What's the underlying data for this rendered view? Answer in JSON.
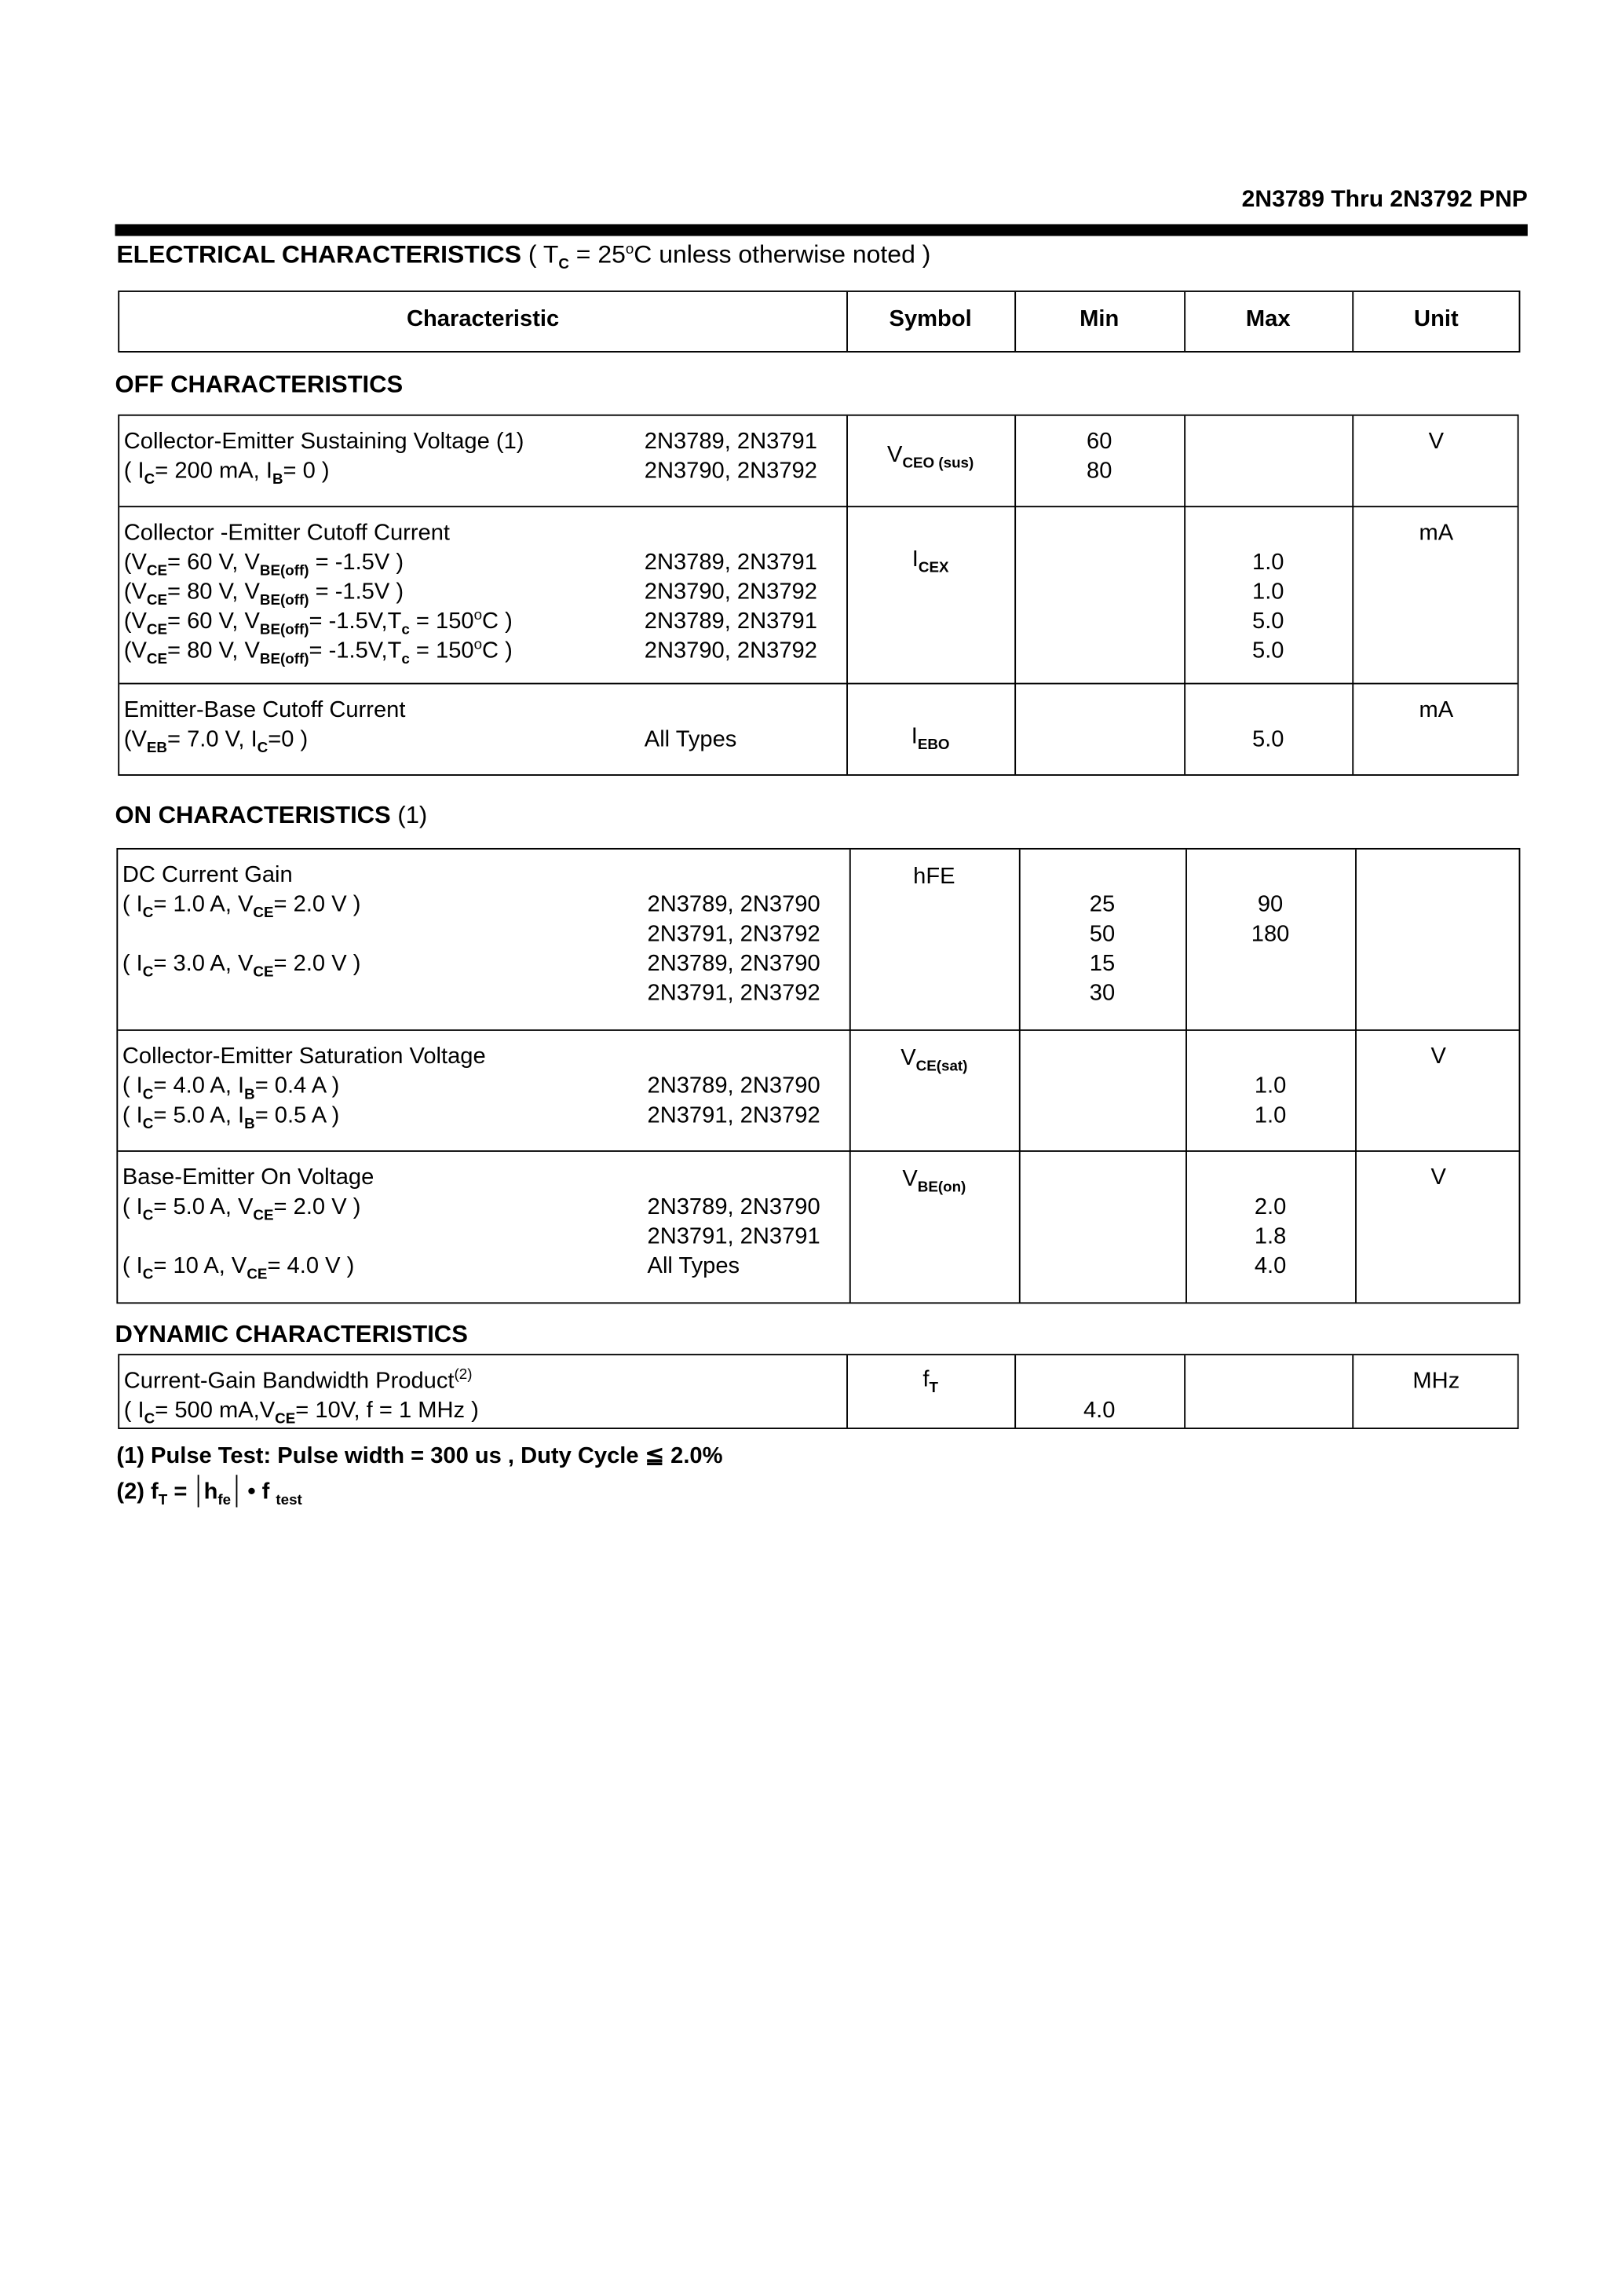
{
  "header": {
    "part_title": "2N3789 Thru 2N3792 PNP"
  },
  "title": {
    "bold": "ELECTRICAL CHARACTERISTICS",
    "cond": [
      [
        "( T"
      ],
      [
        "C",
        "sub"
      ],
      [
        " = 25"
      ],
      [
        "o",
        "sup"
      ],
      [
        "C unless otherwise noted )"
      ]
    ]
  },
  "columns": [
    "Characteristic",
    "Symbol",
    "Min",
    "Max",
    "Unit"
  ],
  "sections": [
    {
      "title": "OFF CHARACTERISTICS",
      "rows": [
        {
          "char": [
            [
              [
                "Collector-Emitter Sustaining Voltage (1)"
              ]
            ],
            [
              [
                "( I"
              ],
              [
                "C",
                "sub"
              ],
              [
                "= 200 mA, I"
              ],
              [
                "B",
                "sub"
              ],
              [
                "= 0 )"
              ]
            ]
          ],
          "parts": [
            "2N3789, 2N3791",
            "2N3790, 2N3792"
          ],
          "symbol": [
            [
              "V"
            ],
            [
              "CEO (sus)",
              "sub"
            ]
          ],
          "min": [
            "60",
            "80"
          ],
          "max": [],
          "unit": "V"
        },
        {
          "char": [
            [
              [
                "Collector -Emitter Cutoff Current"
              ]
            ],
            [
              [
                "(V"
              ],
              [
                "CE",
                "sub"
              ],
              [
                "= 60 V, V"
              ],
              [
                "BE(off)",
                "sub"
              ],
              [
                " = -1.5V )"
              ]
            ],
            [
              [
                "(V"
              ],
              [
                "CE",
                "sub"
              ],
              [
                "= 80 V, V"
              ],
              [
                "BE(off)",
                "sub"
              ],
              [
                " = -1.5V )"
              ]
            ],
            [
              [
                "(V"
              ],
              [
                "CE",
                "sub"
              ],
              [
                "= 60 V, V"
              ],
              [
                "BE(off)",
                "sub"
              ],
              [
                "= -1.5V,T"
              ],
              [
                "c",
                "sub"
              ],
              [
                " = 150"
              ],
              [
                "o",
                "sup"
              ],
              [
                "C )"
              ]
            ],
            [
              [
                "(V"
              ],
              [
                "CE",
                "sub"
              ],
              [
                "= 80 V, V"
              ],
              [
                "BE(off)",
                "sub"
              ],
              [
                "= -1.5V,T"
              ],
              [
                "c",
                "sub"
              ],
              [
                " = 150"
              ],
              [
                "o",
                "sup"
              ],
              [
                "C )"
              ]
            ]
          ],
          "parts": [
            "",
            "2N3789, 2N3791",
            "2N3790, 2N3792",
            "2N3789, 2N3791",
            "2N3790, 2N3792"
          ],
          "symbol": [
            [
              "I"
            ],
            [
              "CEX",
              "sub"
            ]
          ],
          "min": [],
          "max": [
            "",
            "1.0",
            "1.0",
            "5.0",
            "5.0"
          ],
          "unit": "mA"
        },
        {
          "char": [
            [
              [
                "Emitter-Base Cutoff Current"
              ]
            ],
            [
              [
                "(V"
              ],
              [
                "EB",
                "sub"
              ],
              [
                "= 7.0 V, I"
              ],
              [
                "C",
                "sub"
              ],
              [
                "=0 )"
              ]
            ]
          ],
          "parts": [
            "",
            "All  Types"
          ],
          "symbol": [
            [
              "I"
            ],
            [
              "EBO",
              "sub"
            ]
          ],
          "min": [],
          "max": [
            "",
            "5.0"
          ],
          "unit": "mA"
        }
      ]
    },
    {
      "title": "ON CHARACTERISTICS",
      "title_note": "(1)",
      "rows": [
        {
          "char": [
            [
              [
                "DC Current Gain"
              ]
            ],
            [
              [
                " ( I"
              ],
              [
                "C",
                "sub"
              ],
              [
                "= 1.0 A, V"
              ],
              [
                "CE",
                "sub"
              ],
              [
                "= 2.0 V )"
              ]
            ],
            [
              [
                ""
              ]
            ],
            [
              [
                " ( I"
              ],
              [
                "C",
                "sub"
              ],
              [
                "= 3.0 A, V"
              ],
              [
                "CE",
                "sub"
              ],
              [
                "= 2.0 V )"
              ]
            ]
          ],
          "parts": [
            "",
            "2N3789, 2N3790",
            "2N3791, 2N3792",
            "2N3789, 2N3790",
            "2N3791, 2N3792"
          ],
          "symbol": [
            [
              "hFE"
            ]
          ],
          "min": [
            "",
            "25",
            "50",
            "15",
            "30"
          ],
          "max": [
            "",
            "90",
            "180"
          ],
          "unit": ""
        },
        {
          "char": [
            [
              [
                "Collector-Emitter Saturation Voltage"
              ]
            ],
            [
              [
                " ( I"
              ],
              [
                "C",
                "sub"
              ],
              [
                "= 4.0 A, I"
              ],
              [
                "B",
                "sub"
              ],
              [
                "= 0.4 A )"
              ]
            ],
            [
              [
                " ( I"
              ],
              [
                "C",
                "sub"
              ],
              [
                "= 5.0 A, I"
              ],
              [
                "B",
                "sub"
              ],
              [
                "= 0.5 A )"
              ]
            ]
          ],
          "parts": [
            "",
            "2N3789, 2N3790",
            "2N3791, 2N3792"
          ],
          "symbol": [
            [
              "V"
            ],
            [
              "CE(sat)",
              "sub"
            ]
          ],
          "min": [],
          "max": [
            "",
            "1.0",
            "1.0"
          ],
          "unit": "V"
        },
        {
          "char": [
            [
              [
                "Base-Emitter On Voltage"
              ]
            ],
            [
              [
                " ( I"
              ],
              [
                "C",
                "sub"
              ],
              [
                "= 5.0 A, V"
              ],
              [
                "CE",
                "sub"
              ],
              [
                "= 2.0 V )"
              ]
            ],
            [
              [
                ""
              ]
            ],
            [
              [
                " ( I"
              ],
              [
                "C",
                "sub"
              ],
              [
                "= 10 A, V"
              ],
              [
                "CE",
                "sub"
              ],
              [
                "= 4.0 V )"
              ]
            ]
          ],
          "parts": [
            "",
            "2N3789, 2N3790",
            "2N3791, 2N3791",
            "All Types"
          ],
          "symbol": [
            [
              "V"
            ],
            [
              "BE(on)",
              "sub"
            ]
          ],
          "min": [],
          "max": [
            "",
            "2.0",
            "1.8",
            "4.0"
          ],
          "unit": "V"
        }
      ]
    },
    {
      "title": "DYNAMIC CHARACTERISTICS",
      "rows": [
        {
          "char": [
            [
              [
                "Current-Gain Bandwidth Product"
              ],
              [
                "(2)",
                "sup"
              ]
            ],
            [
              [
                " ( I"
              ],
              [
                "C",
                "sub"
              ],
              [
                "= 500 mA,V"
              ],
              [
                "CE",
                "sub"
              ],
              [
                "= 10V, f = 1 MHz )"
              ]
            ]
          ],
          "parts": [],
          "symbol": [
            [
              "f"
            ],
            [
              "T",
              "sub"
            ]
          ],
          "min": [
            "",
            "4.0"
          ],
          "max": [],
          "unit": "MHz"
        }
      ]
    }
  ],
  "footnotes": {
    "note1": "(1) Pulse Test: Pulse width  = 300 us , Duty Cycle ≦ 2.0%",
    "note2_prefix": [
      [
        "(2) f"
      ],
      [
        "T",
        "sub"
      ],
      [
        " =  "
      ]
    ],
    "note2_abs": [
      [
        "h"
      ],
      [
        "fe",
        "sub"
      ]
    ],
    "note2_suffix": [
      [
        " • f "
      ],
      [
        "test",
        "sub"
      ]
    ]
  }
}
